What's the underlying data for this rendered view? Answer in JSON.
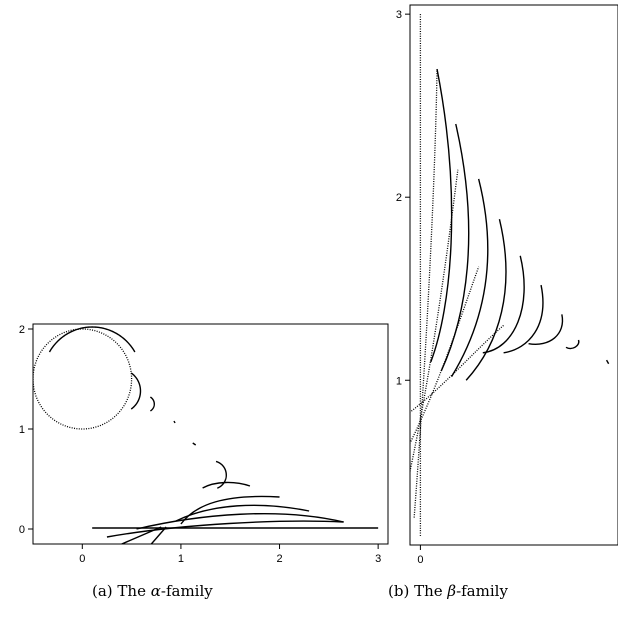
{
  "figure": {
    "panels": [
      {
        "caption_prefix": "(a) The ",
        "caption_symbol": "α",
        "caption_suffix": "-family",
        "x_ticks": [
          "0",
          "1",
          "2",
          "3"
        ],
        "y_ticks": [
          "0",
          "1",
          "2"
        ]
      },
      {
        "caption_prefix": "(b) The ",
        "caption_symbol": "β",
        "caption_suffix": "-family",
        "x_ticks": [
          "0"
        ],
        "y_ticks": [
          "1",
          "2",
          "3"
        ]
      }
    ]
  },
  "chart_data": [
    {
      "type": "line",
      "xlim": [
        -0.5,
        3.1
      ],
      "ylim": [
        -0.15,
        2.05
      ],
      "xticks": [
        0,
        1,
        2,
        3
      ],
      "yticks": [
        0,
        1,
        2
      ],
      "grid": false,
      "series": [
        {
          "style": "dotted",
          "kind": "circle",
          "center": [
            0,
            1.5
          ],
          "radius": 0.5,
          "from_deg": 0,
          "to_deg": 360
        },
        {
          "style": "solid",
          "kind": "circle",
          "center": [
            0.1,
            1.52
          ],
          "radius": 0.5,
          "from_deg": 30,
          "to_deg": 150
        },
        {
          "style": "solid",
          "kind": "circle",
          "center": [
            0.37,
            1.38
          ],
          "radius": 0.22,
          "from_deg": -55,
          "to_deg": 55
        },
        {
          "style": "solid",
          "kind": "circle",
          "center": [
            0.65,
            1.25
          ],
          "radius": 0.08,
          "from_deg": -60,
          "to_deg": 60
        },
        {
          "style": "solid",
          "kind": "segment",
          "points": [
            [
              0.93,
              1.08
            ],
            [
              0.94,
              1.06
            ]
          ]
        },
        {
          "style": "solid",
          "kind": "segment",
          "points": [
            [
              1.12,
              0.86
            ],
            [
              1.15,
              0.84
            ]
          ]
        },
        {
          "style": "solid",
          "kind": "circle",
          "center": [
            1.32,
            0.54
          ],
          "radius": 0.14,
          "from_deg": -70,
          "to_deg": 75
        },
        {
          "style": "solid",
          "kind": "curve",
          "points": [
            [
              1.22,
              0.41
            ],
            [
              1.35,
              0.48
            ],
            [
              1.55,
              0.48
            ],
            [
              1.7,
              0.43
            ]
          ]
        },
        {
          "style": "solid",
          "kind": "curve",
          "points": [
            [
              1.0,
              0.05
            ],
            [
              1.15,
              0.25
            ],
            [
              1.45,
              0.35
            ],
            [
              2.0,
              0.32
            ]
          ]
        },
        {
          "style": "solid",
          "kind": "curve",
          "points": [
            [
              0.95,
              0.08
            ],
            [
              1.3,
              0.25
            ],
            [
              1.8,
              0.28
            ],
            [
              2.3,
              0.18
            ]
          ]
        },
        {
          "style": "solid",
          "kind": "curve",
          "points": [
            [
              0.55,
              0.0
            ],
            [
              1.2,
              0.15
            ],
            [
              2.0,
              0.22
            ],
            [
              2.65,
              0.07
            ]
          ]
        },
        {
          "style": "solid",
          "kind": "curve",
          "points": [
            [
              0.25,
              -0.08
            ],
            [
              1.0,
              0.05
            ],
            [
              2.0,
              0.1
            ],
            [
              2.65,
              0.07
            ]
          ]
        },
        {
          "style": "solid",
          "kind": "segment",
          "points": [
            [
              0.4,
              -0.15
            ],
            [
              0.8,
              0.02
            ]
          ]
        },
        {
          "style": "solid",
          "kind": "segment",
          "points": [
            [
              0.7,
              -0.15
            ],
            [
              0.85,
              0.02
            ]
          ]
        },
        {
          "style": "solid",
          "kind": "segment",
          "points": [
            [
              0.1,
              0.01
            ],
            [
              3.0,
              0.01
            ]
          ]
        }
      ]
    },
    {
      "type": "line",
      "xlim": [
        -0.05,
        0.95
      ],
      "ylim": [
        0.1,
        3.05
      ],
      "xticks": [
        0
      ],
      "yticks": [
        1,
        2,
        3
      ],
      "grid": false,
      "series": [
        {
          "style": "dotted",
          "kind": "segment",
          "points": [
            [
              0.0,
              3.0
            ],
            [
              0.0,
              0.15
            ]
          ]
        },
        {
          "style": "dotted",
          "kind": "curve",
          "points": [
            [
              -0.03,
              0.25
            ],
            [
              0.02,
              1.0
            ],
            [
              0.07,
              2.0
            ],
            [
              0.08,
              2.7
            ]
          ]
        },
        {
          "style": "dotted",
          "kind": "curve",
          "points": [
            [
              -0.07,
              0.4
            ],
            [
              0.03,
              0.9
            ],
            [
              0.12,
              1.6
            ],
            [
              0.18,
              2.15
            ]
          ]
        },
        {
          "style": "dotted",
          "kind": "curve",
          "points": [
            [
              -0.1,
              0.55
            ],
            [
              0.05,
              0.85
            ],
            [
              0.18,
              1.3
            ],
            [
              0.28,
              1.62
            ]
          ]
        },
        {
          "style": "dotted",
          "kind": "curve",
          "points": [
            [
              -0.08,
              0.8
            ],
            [
              0.1,
              0.95
            ],
            [
              0.25,
              1.15
            ],
            [
              0.4,
              1.3
            ]
          ]
        },
        {
          "style": "solid",
          "kind": "curve",
          "points": [
            [
              0.08,
              2.7
            ],
            [
              0.2,
              2.0
            ],
            [
              0.15,
              1.4
            ],
            [
              0.05,
              1.1
            ]
          ]
        },
        {
          "style": "solid",
          "kind": "curve",
          "points": [
            [
              0.17,
              2.4
            ],
            [
              0.29,
              1.8
            ],
            [
              0.22,
              1.35
            ],
            [
              0.1,
              1.05
            ]
          ]
        },
        {
          "style": "solid",
          "kind": "curve",
          "points": [
            [
              0.28,
              2.1
            ],
            [
              0.38,
              1.65
            ],
            [
              0.3,
              1.3
            ],
            [
              0.15,
              1.02
            ]
          ]
        },
        {
          "style": "solid",
          "kind": "curve",
          "points": [
            [
              0.38,
              1.88
            ],
            [
              0.46,
              1.5
            ],
            [
              0.38,
              1.2
            ],
            [
              0.22,
              1.0
            ]
          ]
        },
        {
          "style": "solid",
          "kind": "curve",
          "points": [
            [
              0.48,
              1.68
            ],
            [
              0.54,
              1.4
            ],
            [
              0.45,
              1.17
            ],
            [
              0.3,
              1.15
            ]
          ]
        },
        {
          "style": "solid",
          "kind": "curve",
          "points": [
            [
              0.58,
              1.52
            ],
            [
              0.62,
              1.3
            ],
            [
              0.52,
              1.17
            ],
            [
              0.4,
              1.15
            ]
          ]
        },
        {
          "style": "solid",
          "kind": "curve",
          "points": [
            [
              0.68,
              1.36
            ],
            [
              0.7,
              1.25
            ],
            [
              0.62,
              1.18
            ],
            [
              0.52,
              1.2
            ]
          ]
        },
        {
          "style": "solid",
          "kind": "curve",
          "points": [
            [
              0.76,
              1.22
            ],
            [
              0.77,
              1.19
            ],
            [
              0.73,
              1.16
            ],
            [
              0.7,
              1.18
            ]
          ]
        },
        {
          "style": "solid",
          "kind": "segment",
          "points": [
            [
              0.895,
              1.11
            ],
            [
              0.905,
              1.09
            ]
          ]
        }
      ]
    }
  ]
}
